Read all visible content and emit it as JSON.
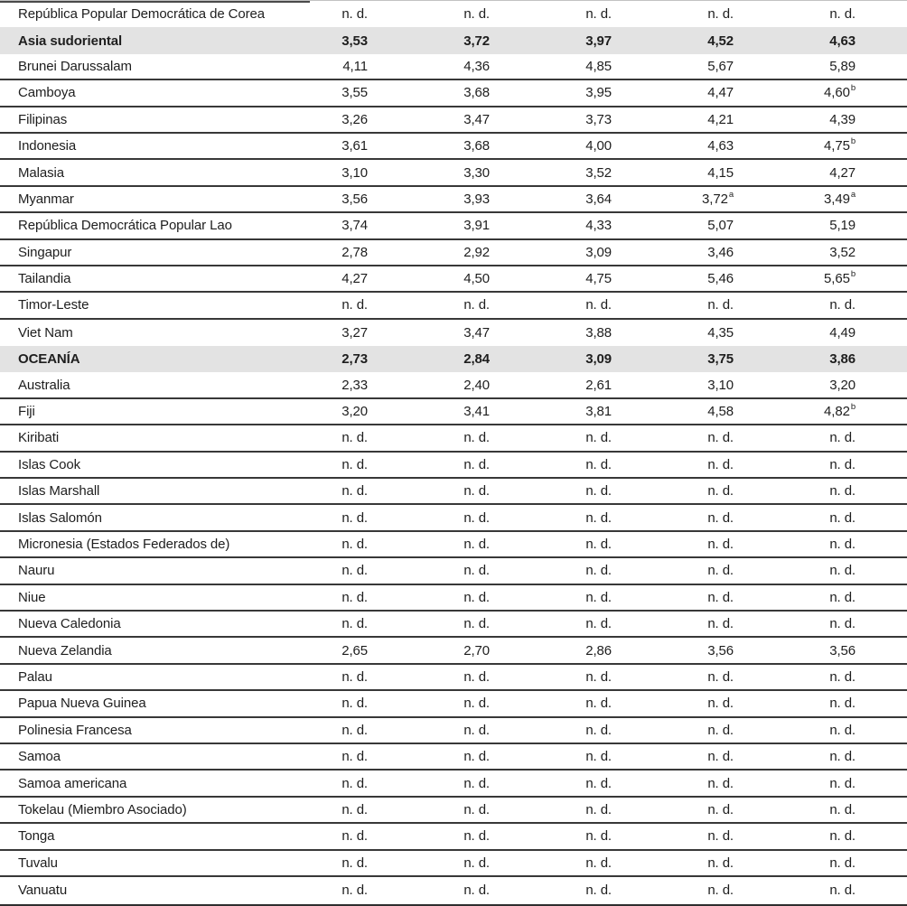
{
  "table": {
    "nd_label": "n. d.",
    "colors": {
      "band_background": "#e3e3e3",
      "separator_line": "#383838",
      "text": "#1e1e1e",
      "bottom_border": "#2e2e2e"
    },
    "rows": [
      {
        "label": "República Popular Democrática de Corea",
        "section": false,
        "line": false,
        "cells": [
          "n. d.",
          "n. d.",
          "n. d.",
          "n. d.",
          "n. d."
        ]
      },
      {
        "label": "Asia sudoriental",
        "section": true,
        "line": false,
        "cells": [
          "3,53",
          "3,72",
          "3,97",
          "4,52",
          "4,63"
        ]
      },
      {
        "label": "Brunei Darussalam",
        "section": false,
        "line": true,
        "cells": [
          "4,11",
          "4,36",
          "4,85",
          "5,67",
          "5,89"
        ]
      },
      {
        "label": "Camboya",
        "section": false,
        "line": true,
        "cells": [
          "3,55",
          "3,68",
          "3,95",
          "4,47",
          {
            "v": "4,60",
            "s": "b"
          }
        ]
      },
      {
        "label": "Filipinas",
        "section": false,
        "line": true,
        "cells": [
          "3,26",
          "3,47",
          "3,73",
          "4,21",
          "4,39"
        ]
      },
      {
        "label": "Indonesia",
        "section": false,
        "line": true,
        "cells": [
          "3,61",
          "3,68",
          "4,00",
          "4,63",
          {
            "v": "4,75",
            "s": "b"
          }
        ]
      },
      {
        "label": "Malasia",
        "section": false,
        "line": true,
        "cells": [
          "3,10",
          "3,30",
          "3,52",
          "4,15",
          "4,27"
        ]
      },
      {
        "label": "Myanmar",
        "section": false,
        "line": true,
        "cells": [
          "3,56",
          "3,93",
          "3,64",
          {
            "v": "3,72",
            "s": "a"
          },
          {
            "v": "3,49",
            "s": "a"
          }
        ]
      },
      {
        "label": "República Democrática Popular Lao",
        "section": false,
        "line": true,
        "cells": [
          "3,74",
          "3,91",
          "4,33",
          "5,07",
          "5,19"
        ]
      },
      {
        "label": "Singapur",
        "section": false,
        "line": true,
        "cells": [
          "2,78",
          "2,92",
          "3,09",
          "3,46",
          "3,52"
        ]
      },
      {
        "label": "Tailandia",
        "section": false,
        "line": true,
        "cells": [
          "4,27",
          "4,50",
          "4,75",
          "5,46",
          {
            "v": "5,65",
            "s": "b"
          }
        ]
      },
      {
        "label": "Timor-Leste",
        "section": false,
        "line": true,
        "cells": [
          "n. d.",
          "n. d.",
          "n. d.",
          "n. d.",
          "n. d."
        ]
      },
      {
        "label": "Viet Nam",
        "section": false,
        "line": false,
        "cells": [
          "3,27",
          "3,47",
          "3,88",
          "4,35",
          "4,49"
        ]
      },
      {
        "label": "OCEANÍA",
        "section": true,
        "line": false,
        "cells": [
          "2,73",
          "2,84",
          "3,09",
          "3,75",
          "3,86"
        ]
      },
      {
        "label": "Australia",
        "section": false,
        "line": true,
        "cells": [
          "2,33",
          "2,40",
          "2,61",
          "3,10",
          "3,20"
        ]
      },
      {
        "label": "Fiji",
        "section": false,
        "line": true,
        "cells": [
          "3,20",
          "3,41",
          "3,81",
          "4,58",
          {
            "v": "4,82",
            "s": "b"
          }
        ]
      },
      {
        "label": "Kiribati",
        "section": false,
        "line": true,
        "cells": [
          "n. d.",
          "n. d.",
          "n. d.",
          "n. d.",
          "n. d."
        ]
      },
      {
        "label": "Islas Cook",
        "section": false,
        "line": true,
        "cells": [
          "n. d.",
          "n. d.",
          "n. d.",
          "n. d.",
          "n. d."
        ]
      },
      {
        "label": "Islas Marshall",
        "section": false,
        "line": true,
        "cells": [
          "n. d.",
          "n. d.",
          "n. d.",
          "n. d.",
          "n. d."
        ]
      },
      {
        "label": "Islas Salomón",
        "section": false,
        "line": true,
        "cells": [
          "n. d.",
          "n. d.",
          "n. d.",
          "n. d.",
          "n. d."
        ]
      },
      {
        "label": "Micronesia (Estados Federados de)",
        "section": false,
        "line": true,
        "cells": [
          "n. d.",
          "n. d.",
          "n. d.",
          "n. d.",
          "n. d."
        ]
      },
      {
        "label": "Nauru",
        "section": false,
        "line": true,
        "cells": [
          "n. d.",
          "n. d.",
          "n. d.",
          "n. d.",
          "n. d."
        ]
      },
      {
        "label": "Niue",
        "section": false,
        "line": true,
        "cells": [
          "n. d.",
          "n. d.",
          "n. d.",
          "n. d.",
          "n. d."
        ]
      },
      {
        "label": "Nueva Caledonia",
        "section": false,
        "line": true,
        "cells": [
          "n. d.",
          "n. d.",
          "n. d.",
          "n. d.",
          "n. d."
        ]
      },
      {
        "label": "Nueva Zelandia",
        "section": false,
        "line": true,
        "cells": [
          "2,65",
          "2,70",
          "2,86",
          "3,56",
          "3,56"
        ]
      },
      {
        "label": "Palau",
        "section": false,
        "line": true,
        "cells": [
          "n. d.",
          "n. d.",
          "n. d.",
          "n. d.",
          "n. d."
        ]
      },
      {
        "label": "Papua Nueva Guinea",
        "section": false,
        "line": true,
        "cells": [
          "n. d.",
          "n. d.",
          "n. d.",
          "n. d.",
          "n. d."
        ]
      },
      {
        "label": "Polinesia Francesa",
        "section": false,
        "line": true,
        "cells": [
          "n. d.",
          "n. d.",
          "n. d.",
          "n. d.",
          "n. d."
        ]
      },
      {
        "label": "Samoa",
        "section": false,
        "line": true,
        "cells": [
          "n. d.",
          "n. d.",
          "n. d.",
          "n. d.",
          "n. d."
        ]
      },
      {
        "label": "Samoa americana",
        "section": false,
        "line": true,
        "cells": [
          "n. d.",
          "n. d.",
          "n. d.",
          "n. d.",
          "n. d."
        ]
      },
      {
        "label": "Tokelau (Miembro Asociado)",
        "section": false,
        "line": true,
        "cells": [
          "n. d.",
          "n. d.",
          "n. d.",
          "n. d.",
          "n. d."
        ]
      },
      {
        "label": "Tonga",
        "section": false,
        "line": true,
        "cells": [
          "n. d.",
          "n. d.",
          "n. d.",
          "n. d.",
          "n. d."
        ]
      },
      {
        "label": "Tuvalu",
        "section": false,
        "line": true,
        "cells": [
          "n. d.",
          "n. d.",
          "n. d.",
          "n. d.",
          "n. d."
        ]
      },
      {
        "label": "Vanuatu",
        "section": false,
        "line": false,
        "cells": [
          "n. d.",
          "n. d.",
          "n. d.",
          "n. d.",
          "n. d."
        ]
      }
    ]
  }
}
